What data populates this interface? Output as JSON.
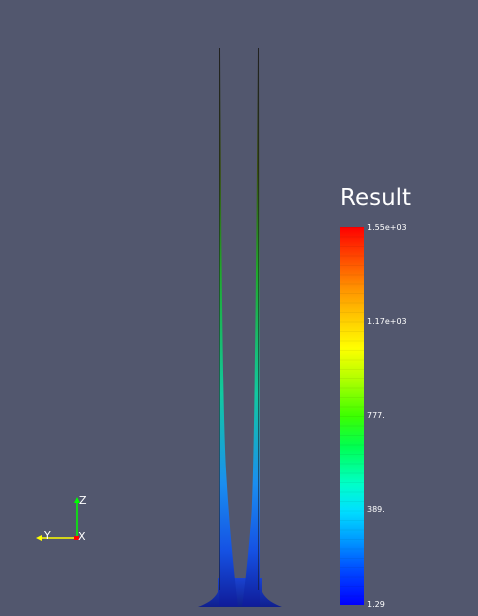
{
  "legend": {
    "title": "Result",
    "ticks": [
      "1.55e+03",
      "1.17e+03",
      "777.",
      "389.",
      "1.29"
    ]
  },
  "orientation_axes": {
    "z_label": "Z",
    "y_label": "Y",
    "x_label": "X"
  },
  "colors": {
    "background": "#52576e",
    "axis_z": "#00ff00",
    "axis_y": "#ffff00",
    "axis_x": "#ff0000"
  }
}
